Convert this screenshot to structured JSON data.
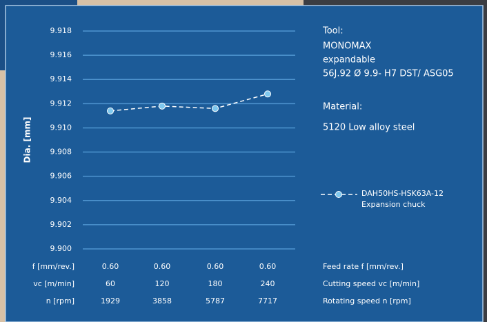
{
  "chart_data": {
    "type": "line",
    "ylabel": "Dia. [mm]",
    "ylim": [
      9.9,
      9.918
    ],
    "yticks": [
      {
        "value": 9.9,
        "label": "9.900"
      },
      9.902,
      9.904,
      9.906,
      9.908,
      {
        "value": 9.91,
        "label": "9.910"
      },
      9.912,
      9.914,
      9.916,
      9.918
    ],
    "grid": true,
    "series": [
      {
        "name": "DAH50HS-HSK63A-12 Expansion chuck",
        "color": "#7fc8ee",
        "values": [
          9.9114,
          9.9118,
          9.9116,
          9.9128
        ]
      }
    ],
    "info": {
      "tool_heading": "Tool:",
      "tool_lines": [
        "MONOMAX",
        "expandable",
        "56J.92 Ø 9.9- H7 DST/ ASG05"
      ],
      "material_heading": "Material:",
      "material": "5120 Low alloy steel"
    },
    "table": [
      {
        "label": "f [mm/rev.]",
        "values": [
          "0.60",
          "0.60",
          "0.60",
          "0.60"
        ],
        "description": "Feed rate f [mm/rev.]"
      },
      {
        "label": "vc [m/min]",
        "values": [
          "60",
          "120",
          "180",
          "240"
        ],
        "description": "Cutting speed vc [m/min]"
      },
      {
        "label": "n [rpm]",
        "values": [
          "1929",
          "3858",
          "5787",
          "7717"
        ],
        "description": "Rotating speed n [rpm]"
      }
    ]
  }
}
